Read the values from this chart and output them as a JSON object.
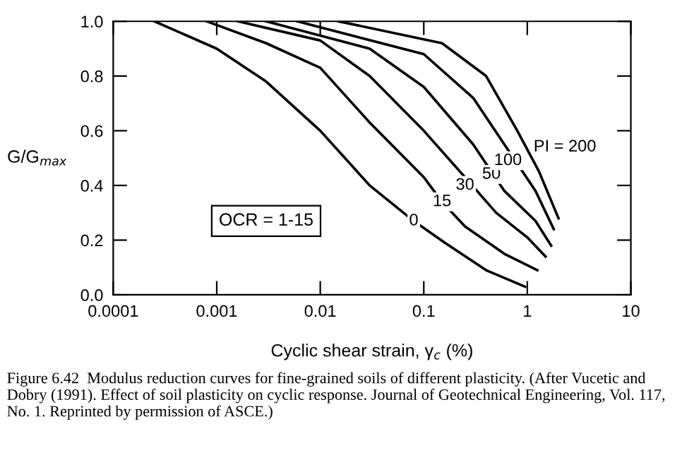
{
  "chart_data": {
    "type": "line",
    "xlabel": "Cyclic shear strain, γ$_{c}$ (%)",
    "ylabel": "G/G$_{max}$",
    "log": "x",
    "xlim": [
      0.0001,
      10
    ],
    "xticks": [
      {
        "value": 0.0001,
        "label": "0.0001"
      },
      {
        "value": 0.001,
        "label": "0.001"
      },
      {
        "value": 0.01,
        "label": "0.01"
      },
      {
        "value": 0.1,
        "label": "0.1"
      },
      {
        "value": 1,
        "label": "1"
      },
      {
        "value": 10,
        "label": "10"
      }
    ],
    "ylim": [
      0,
      1
    ],
    "yticks": [
      {
        "value": 0,
        "label": "0.0"
      },
      {
        "value": 0.2,
        "label": "0.2"
      },
      {
        "value": 0.4,
        "label": "0.4"
      },
      {
        "value": 0.6,
        "label": "0.6"
      },
      {
        "value": 0.8,
        "label": "0.8"
      },
      {
        "value": 1,
        "label": "1.0"
      }
    ],
    "grid": false,
    "marker": "none",
    "line_style": "solid",
    "series": [
      {
        "color": "#000000",
        "x": [
          0.00025,
          0.001,
          0.003,
          0.01,
          0.03,
          0.08,
          0.16,
          0.4,
          0.95
        ],
        "values": [
          1.0,
          0.9,
          0.78,
          0.6,
          0.4,
          0.27,
          0.19,
          0.09,
          0.03
        ]
      },
      {
        "color": "#000000",
        "x": [
          0.0008,
          0.003,
          0.01,
          0.03,
          0.1,
          0.15,
          0.25,
          0.6,
          1.25
        ],
        "values": [
          1.0,
          0.92,
          0.83,
          0.63,
          0.43,
          0.34,
          0.25,
          0.15,
          0.09
        ]
      },
      {
        "color": "#000000",
        "x": [
          0.0016,
          0.01,
          0.03,
          0.1,
          0.25,
          0.5,
          1.0,
          1.5
        ],
        "values": [
          1.0,
          0.93,
          0.8,
          0.6,
          0.43,
          0.3,
          0.21,
          0.14
        ]
      },
      {
        "color": "#000000",
        "x": [
          0.003,
          0.03,
          0.1,
          0.3,
          0.6,
          1.2,
          1.7
        ],
        "values": [
          1.0,
          0.9,
          0.76,
          0.55,
          0.38,
          0.27,
          0.18
        ]
      },
      {
        "color": "#000000",
        "x": [
          0.006,
          0.1,
          0.3,
          0.6,
          1.2,
          1.8
        ],
        "values": [
          1.0,
          0.88,
          0.72,
          0.55,
          0.38,
          0.24
        ]
      },
      {
        "color": "#000000",
        "x": [
          0.015,
          0.15,
          0.4,
          0.8,
          1.3,
          2.0
        ],
        "values": [
          1.0,
          0.92,
          0.8,
          0.6,
          0.45,
          0.28
        ]
      }
    ],
    "annotations": [
      {
        "text": "0",
        "x": 0.08,
        "y": 0.27
      },
      {
        "text": "15",
        "x": 0.15,
        "y": 0.34
      },
      {
        "text": "30",
        "x": 0.25,
        "y": 0.4
      },
      {
        "text": "50",
        "x": 0.45,
        "y": 0.44
      },
      {
        "text": "100",
        "x": 0.65,
        "y": 0.49
      },
      "PI = 200",
      "OCR = 1-15",
      "Figure 6.42  Modulus reduction curves for fine-grained soils of different plasticity. (After Vucetic and Dobry (1991). Effect of soil plasticity on cyclic response. Journal of Geotechnical Engineering, Vol. 117, No. 1. Reprinted by permission of ASCE.)"
    ]
  }
}
